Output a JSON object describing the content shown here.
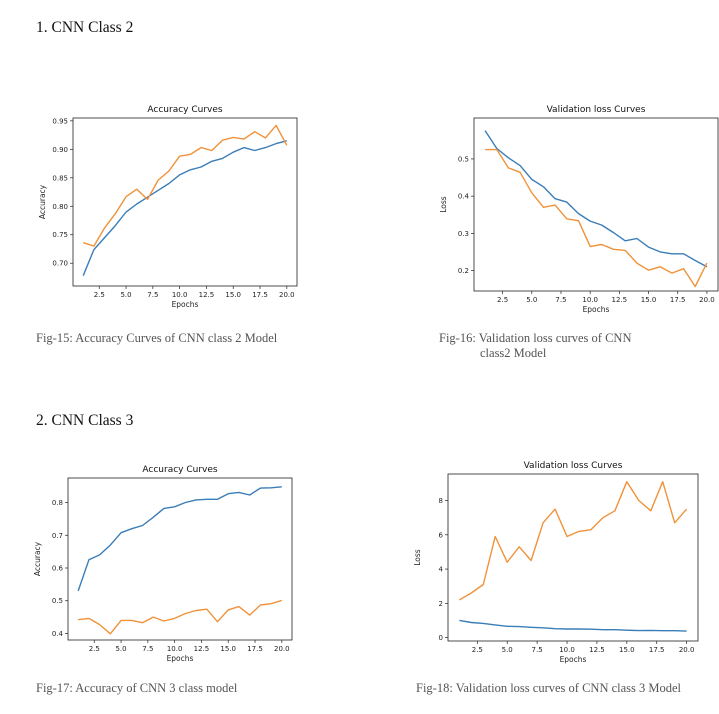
{
  "sections": [
    {
      "heading": "1.  CNN Class 2"
    },
    {
      "heading": "2.  CNN Class 3"
    }
  ],
  "captions": {
    "fig15": "Fig-15: Accuracy Curves of CNN class 2 Model",
    "fig16_line1": "Fig-16: Validation loss curves of CNN",
    "fig16_line2": "class2 Model",
    "fig17": "Fig-17: Accuracy of CNN 3 class model",
    "fig18": "Fig-18: Validation loss curves of CNN class 3 Model"
  },
  "colors": {
    "blue": "#3a7db8",
    "orange": "#f0923a"
  },
  "chart_data": [
    {
      "id": "fig15",
      "type": "line",
      "title": "Accuracy Curves",
      "xlabel": "Epochs",
      "ylabel": "Accuracy",
      "xlim": [
        0.05,
        20.95
      ],
      "ylim": [
        0.66,
        0.955
      ],
      "xticks": [
        2.5,
        5.0,
        7.5,
        10.0,
        12.5,
        15.0,
        17.5,
        20.0
      ],
      "xtick_labels": [
        "2.5",
        "5.0",
        "7.5",
        "10.0",
        "12.5",
        "15.0",
        "17.5",
        "20.0"
      ],
      "yticks": [
        0.7,
        0.75,
        0.8,
        0.85,
        0.9,
        0.95
      ],
      "ytick_labels": [
        "0.70",
        "0.75",
        "0.80",
        "0.85",
        "0.90",
        "0.95"
      ],
      "x": [
        1,
        2,
        3,
        4,
        5,
        6,
        7,
        8,
        9,
        10,
        11,
        12,
        13,
        14,
        15,
        16,
        17,
        18,
        19,
        20
      ],
      "series": [
        {
          "color": "#3a7db8",
          "values": [
            0.678,
            0.724,
            0.745,
            0.766,
            0.79,
            0.804,
            0.816,
            0.828,
            0.84,
            0.855,
            0.864,
            0.869,
            0.879,
            0.884,
            0.895,
            0.903,
            0.898,
            0.903,
            0.91,
            0.915
          ]
        },
        {
          "color": "#f0923a",
          "values": [
            0.736,
            0.73,
            0.762,
            0.787,
            0.817,
            0.83,
            0.812,
            0.846,
            0.862,
            0.888,
            0.891,
            0.903,
            0.898,
            0.916,
            0.921,
            0.918,
            0.931,
            0.92,
            0.942,
            0.907
          ]
        }
      ]
    },
    {
      "id": "fig16",
      "type": "line",
      "title": "Validation loss Curves",
      "xlabel": "Epochs",
      "ylabel": "Loss",
      "xlim": [
        0.05,
        20.95
      ],
      "ylim": [
        0.145,
        0.61
      ],
      "xticks": [
        2.5,
        5.0,
        7.5,
        10.0,
        12.5,
        15.0,
        17.5,
        20.0
      ],
      "xtick_labels": [
        "2.5",
        "5.0",
        "7.5",
        "10.0",
        "12.5",
        "15.0",
        "17.5",
        "20.0"
      ],
      "yticks": [
        0.2,
        0.3,
        0.4,
        0.5
      ],
      "ytick_labels": [
        "0.2",
        "0.3",
        "0.4",
        "0.5"
      ],
      "x": [
        1,
        2,
        3,
        4,
        5,
        6,
        7,
        8,
        9,
        10,
        11,
        12,
        13,
        14,
        15,
        16,
        17,
        18,
        19,
        20
      ],
      "series": [
        {
          "color": "#3a7db8",
          "values": [
            0.576,
            0.528,
            0.503,
            0.482,
            0.445,
            0.425,
            0.393,
            0.384,
            0.353,
            0.333,
            0.322,
            0.302,
            0.28,
            0.286,
            0.263,
            0.25,
            0.245,
            0.245,
            0.227,
            0.21
          ]
        },
        {
          "color": "#f0923a",
          "values": [
            0.525,
            0.525,
            0.476,
            0.464,
            0.409,
            0.37,
            0.376,
            0.339,
            0.334,
            0.265,
            0.27,
            0.257,
            0.254,
            0.22,
            0.201,
            0.21,
            0.193,
            0.205,
            0.157,
            0.22
          ]
        }
      ]
    },
    {
      "id": "fig17",
      "type": "line",
      "title": "Accuracy Curves",
      "xlabel": "Epochs",
      "ylabel": "Accuracy",
      "xlim": [
        0.05,
        20.95
      ],
      "ylim": [
        0.38,
        0.875
      ],
      "xticks": [
        2.5,
        5.0,
        7.5,
        10.0,
        12.5,
        15.0,
        17.5,
        20.0
      ],
      "xtick_labels": [
        "2.5",
        "5.0",
        "7.5",
        "10.0",
        "12.5",
        "15.0",
        "17.5",
        "20.0"
      ],
      "yticks": [
        0.4,
        0.5,
        0.6,
        0.7,
        0.8
      ],
      "ytick_labels": [
        "0.4",
        "0.5",
        "0.6",
        "0.7",
        "0.8"
      ],
      "x": [
        1,
        2,
        3,
        4,
        5,
        6,
        7,
        8,
        9,
        10,
        11,
        12,
        13,
        14,
        15,
        16,
        17,
        18,
        19,
        20
      ],
      "series": [
        {
          "color": "#3a7db8",
          "values": [
            0.53,
            0.625,
            0.64,
            0.67,
            0.708,
            0.72,
            0.73,
            0.755,
            0.782,
            0.787,
            0.8,
            0.808,
            0.81,
            0.81,
            0.827,
            0.831,
            0.823,
            0.844,
            0.845,
            0.848
          ]
        },
        {
          "color": "#f0923a",
          "values": [
            0.442,
            0.446,
            0.427,
            0.399,
            0.44,
            0.44,
            0.433,
            0.45,
            0.438,
            0.446,
            0.461,
            0.47,
            0.474,
            0.436,
            0.472,
            0.482,
            0.456,
            0.487,
            0.491,
            0.501
          ]
        }
      ]
    },
    {
      "id": "fig18",
      "type": "line",
      "title": "Validation loss Curves",
      "xlabel": "Epochs",
      "ylabel": "Loss",
      "xlim": [
        0.05,
        20.95
      ],
      "ylim": [
        -0.2,
        9.55
      ],
      "xticks": [
        2.5,
        5.0,
        7.5,
        10.0,
        12.5,
        15.0,
        17.5,
        20.0
      ],
      "xtick_labels": [
        "2.5",
        "5.0",
        "7.5",
        "10.0",
        "12.5",
        "15.0",
        "17.5",
        "20.0"
      ],
      "yticks": [
        0,
        2,
        4,
        6,
        8
      ],
      "ytick_labels": [
        "0",
        "2",
        "4",
        "6",
        "8"
      ],
      "x": [
        1,
        2,
        3,
        4,
        5,
        6,
        7,
        8,
        9,
        10,
        11,
        12,
        13,
        14,
        15,
        16,
        17,
        18,
        19,
        20
      ],
      "series": [
        {
          "color": "#3a7db8",
          "values": [
            1.0,
            0.88,
            0.83,
            0.74,
            0.66,
            0.64,
            0.6,
            0.57,
            0.52,
            0.5,
            0.5,
            0.49,
            0.46,
            0.46,
            0.43,
            0.41,
            0.42,
            0.4,
            0.4,
            0.38
          ]
        },
        {
          "color": "#f0923a",
          "values": [
            2.2,
            2.6,
            3.1,
            5.9,
            4.4,
            5.3,
            4.5,
            6.7,
            7.5,
            5.9,
            6.2,
            6.3,
            7.0,
            7.4,
            9.1,
            8.0,
            7.4,
            9.1,
            6.7,
            7.5
          ]
        }
      ]
    }
  ]
}
